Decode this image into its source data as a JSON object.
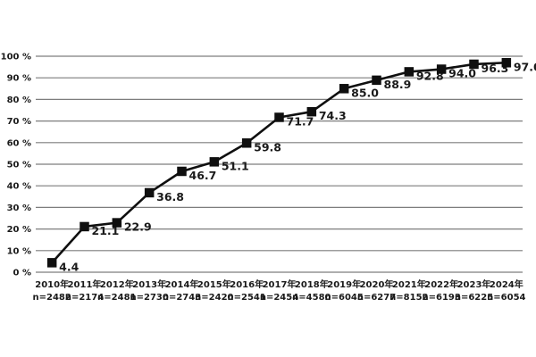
{
  "chart_data": {
    "type": "line",
    "title": "",
    "xlabel": "",
    "ylabel": "",
    "ylim": [
      0,
      100
    ],
    "ytick_step": 10,
    "ytick_labels": [
      "0 %",
      "10 %",
      "20 %",
      "30 %",
      "40 %",
      "50 %",
      "60 %",
      "70 %",
      "80 %",
      "90 %",
      "100 %"
    ],
    "grid": true,
    "legend": "none",
    "categories": [
      "2010年",
      "2011年",
      "2012年",
      "2013年",
      "2014年",
      "2015年",
      "2016年",
      "2017年",
      "2018年",
      "2019年",
      "2020年",
      "2021年",
      "2022年",
      "2023年",
      "2024年"
    ],
    "sample_sizes": [
      "n=2482",
      "n=2174",
      "n=2481",
      "n=2730",
      "n=2743",
      "n=2420",
      "n=2541",
      "n=2454",
      "n=4580",
      "n=6045",
      "n=6277",
      "n=8152",
      "n=6193",
      "n=6225",
      "n=6054"
    ],
    "values": [
      4.4,
      21.1,
      22.9,
      36.8,
      46.7,
      51.1,
      59.8,
      71.7,
      74.3,
      85.0,
      88.9,
      92.8,
      94.0,
      96.3,
      97.0
    ],
    "value_labels": [
      "4.4",
      "21.1",
      "22.9",
      "36.8",
      "46.7",
      "51.1",
      "59.8",
      "71.7",
      "74.3",
      "85.0",
      "88.9",
      "92.8",
      "94.0",
      "96.3",
      "97.0"
    ],
    "colors": {
      "line": "#0f0f0f",
      "marker": "#0f0f0f",
      "grid": "#7d7d7d",
      "text": "#1a1a1a",
      "background": "#ffffff"
    },
    "marker_shape": "square"
  }
}
